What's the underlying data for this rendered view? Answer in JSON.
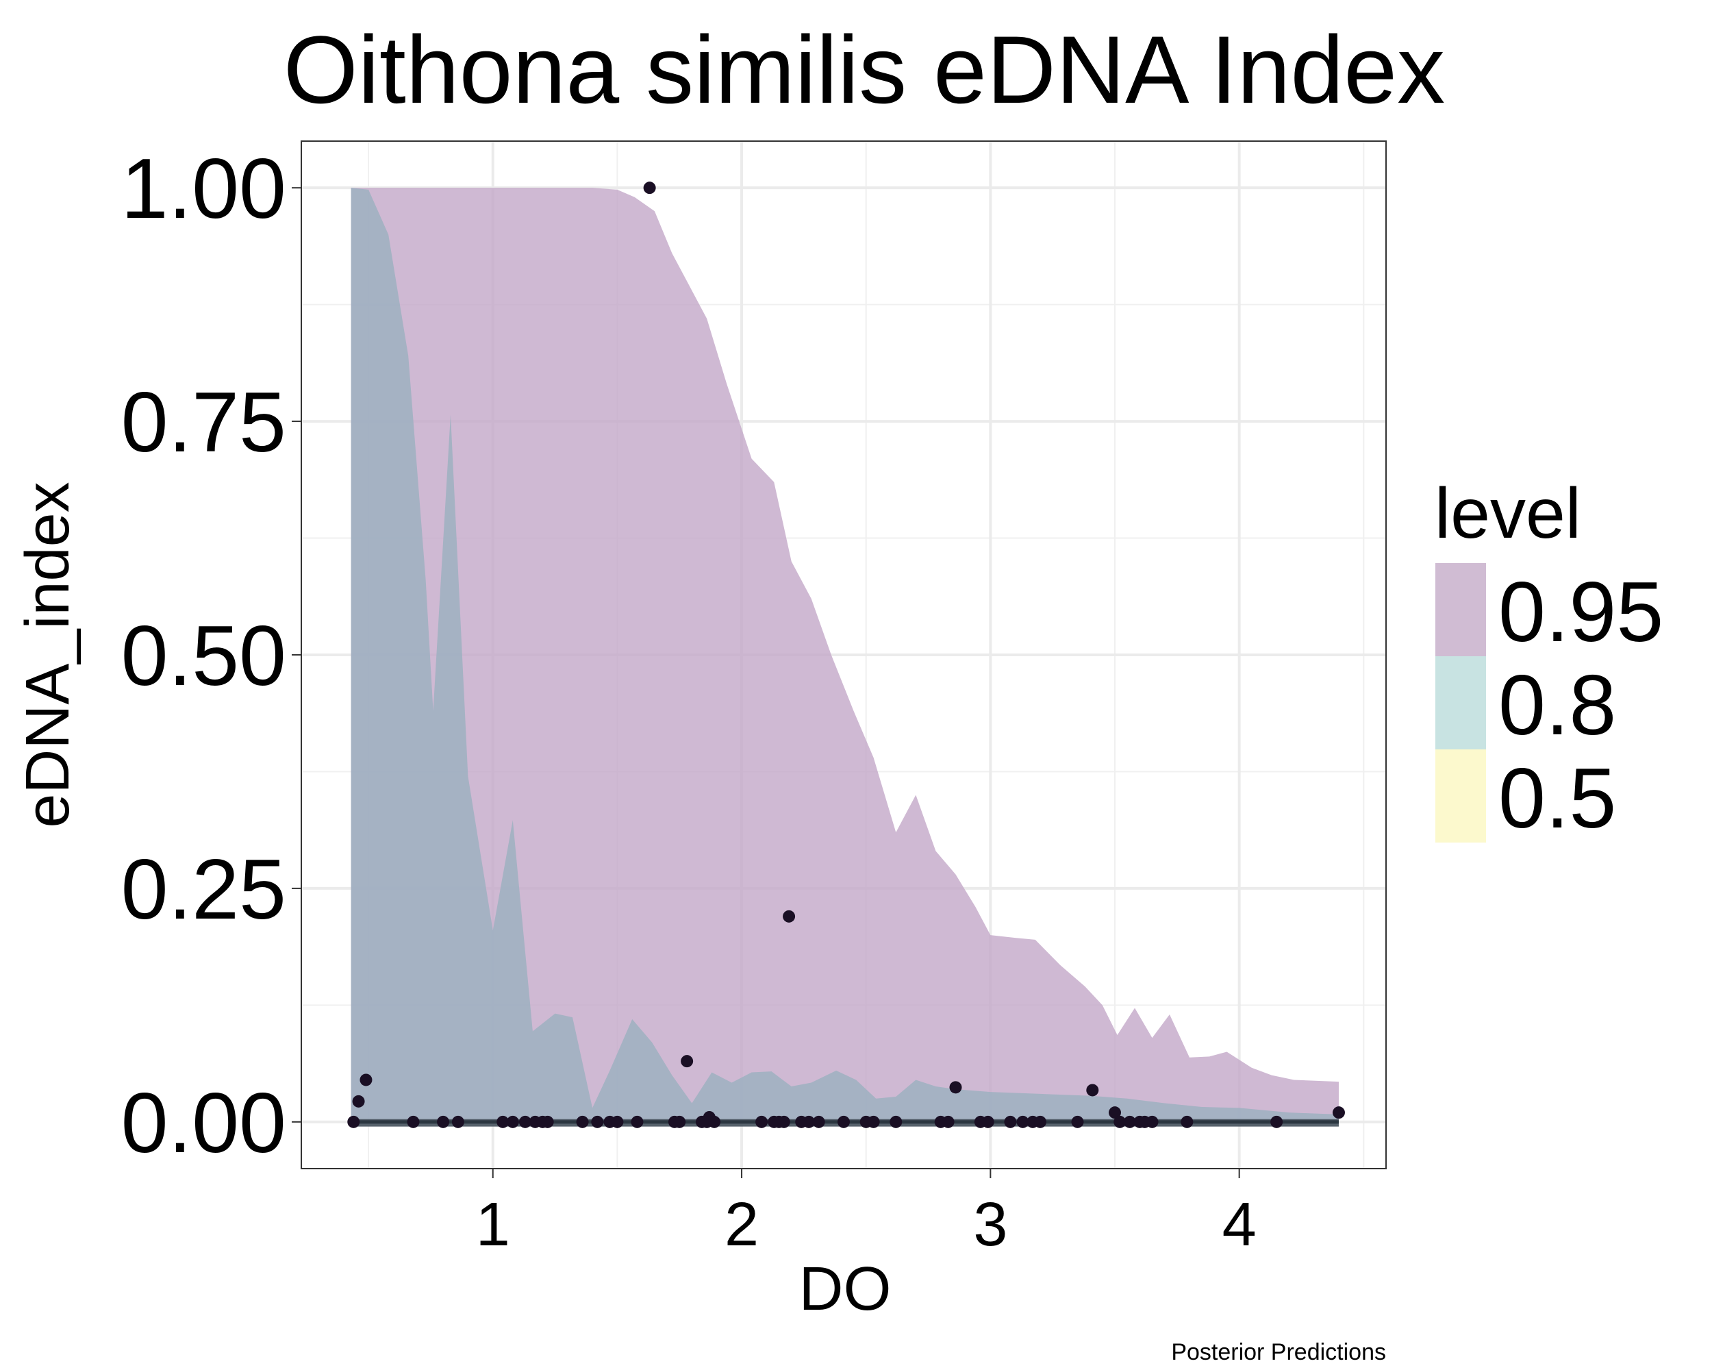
{
  "chart_data": {
    "type": "area",
    "title": "Oithona similis eDNA Index",
    "xlabel": "DO",
    "ylabel": "eDNA_index",
    "caption": "Posterior Predictions",
    "xlim": [
      0.23,
      4.59
    ],
    "ylim": [
      -0.05,
      1.05
    ],
    "x_ticks": [
      1,
      2,
      3,
      4
    ],
    "y_ticks": [
      0.0,
      0.25,
      0.5,
      0.75,
      1.0
    ],
    "y_tick_labels": [
      "0.00",
      "0.25",
      "0.50",
      "0.75",
      "1.00"
    ],
    "grid": true,
    "legend": {
      "title": "level",
      "position": "right",
      "entries": [
        {
          "label": "0.95",
          "color": "#d0bcd3"
        },
        {
          "label": "0.8",
          "color": "#c8e3e2"
        },
        {
          "label": "0.5",
          "color": "#fcf9cd"
        }
      ]
    },
    "bands": [
      {
        "level": "0.95",
        "color": "#c2a5c6",
        "upper": [
          [
            0.43,
            1.0
          ],
          [
            0.5,
            1.0
          ],
          [
            0.6,
            1.0
          ],
          [
            0.7,
            1.0
          ],
          [
            0.8,
            1.0
          ],
          [
            0.9,
            1.0
          ],
          [
            1.0,
            1.0
          ],
          [
            1.1,
            1.0
          ],
          [
            1.2,
            1.0
          ],
          [
            1.3,
            1.0
          ],
          [
            1.4,
            1.0
          ],
          [
            1.5,
            0.998
          ],
          [
            1.57,
            0.99
          ],
          [
            1.65,
            0.975
          ],
          [
            1.72,
            0.93
          ],
          [
            1.78,
            0.9
          ],
          [
            1.86,
            0.86
          ],
          [
            1.94,
            0.79
          ],
          [
            2.04,
            0.71
          ],
          [
            2.13,
            0.685
          ],
          [
            2.2,
            0.6
          ],
          [
            2.28,
            0.56
          ],
          [
            2.36,
            0.5
          ],
          [
            2.45,
            0.44
          ],
          [
            2.53,
            0.39
          ],
          [
            2.62,
            0.31
          ],
          [
            2.7,
            0.35
          ],
          [
            2.78,
            0.29
          ],
          [
            2.86,
            0.265
          ],
          [
            2.94,
            0.23
          ],
          [
            3.0,
            0.2
          ],
          [
            3.1,
            0.197
          ],
          [
            3.18,
            0.195
          ],
          [
            3.28,
            0.168
          ],
          [
            3.38,
            0.145
          ],
          [
            3.45,
            0.125
          ],
          [
            3.51,
            0.093
          ],
          [
            3.58,
            0.122
          ],
          [
            3.65,
            0.09
          ],
          [
            3.72,
            0.115
          ],
          [
            3.8,
            0.069
          ],
          [
            3.88,
            0.07
          ],
          [
            3.95,
            0.075
          ],
          [
            4.05,
            0.058
          ],
          [
            4.13,
            0.05
          ],
          [
            4.22,
            0.045
          ],
          [
            4.4,
            0.043
          ]
        ],
        "lower": [
          [
            0.43,
            0.0
          ],
          [
            4.4,
            0.0
          ]
        ]
      },
      {
        "level": "0.8",
        "color": "#98b0bf",
        "upper": [
          [
            0.43,
            1.0
          ],
          [
            0.5,
            0.998
          ],
          [
            0.58,
            0.95
          ],
          [
            0.66,
            0.82
          ],
          [
            0.73,
            0.58
          ],
          [
            0.76,
            0.44
          ],
          [
            0.83,
            0.757
          ],
          [
            0.9,
            0.37
          ],
          [
            1.0,
            0.205
          ],
          [
            1.08,
            0.323
          ],
          [
            1.16,
            0.097
          ],
          [
            1.25,
            0.116
          ],
          [
            1.32,
            0.112
          ],
          [
            1.4,
            0.015
          ],
          [
            1.47,
            0.055
          ],
          [
            1.56,
            0.11
          ],
          [
            1.64,
            0.085
          ],
          [
            1.72,
            0.05
          ],
          [
            1.8,
            0.02
          ],
          [
            1.88,
            0.053
          ],
          [
            1.96,
            0.042
          ],
          [
            2.04,
            0.053
          ],
          [
            2.12,
            0.054
          ],
          [
            2.2,
            0.038
          ],
          [
            2.28,
            0.042
          ],
          [
            2.38,
            0.055
          ],
          [
            2.46,
            0.045
          ],
          [
            2.54,
            0.025
          ],
          [
            2.62,
            0.027
          ],
          [
            2.7,
            0.045
          ],
          [
            2.78,
            0.038
          ],
          [
            2.86,
            0.035
          ],
          [
            3.0,
            0.032
          ],
          [
            3.2,
            0.03
          ],
          [
            3.4,
            0.028
          ],
          [
            3.55,
            0.025
          ],
          [
            3.7,
            0.02
          ],
          [
            3.85,
            0.016
          ],
          [
            4.0,
            0.015
          ],
          [
            4.2,
            0.01
          ],
          [
            4.4,
            0.008
          ]
        ],
        "lower": [
          [
            0.43,
            0.0
          ],
          [
            4.4,
            0.0
          ]
        ]
      },
      {
        "level": "0.5",
        "color": "#4e5a64",
        "upper": [
          [
            0.43,
            0.003
          ],
          [
            4.4,
            0.003
          ]
        ],
        "lower": [
          [
            0.43,
            -0.005
          ],
          [
            4.4,
            -0.005
          ]
        ]
      }
    ],
    "median_line": [
      [
        0.43,
        0.0
      ],
      [
        4.4,
        0.0
      ]
    ],
    "points": [
      [
        1.63,
        1.0
      ],
      [
        2.19,
        0.22
      ],
      [
        1.78,
        0.065
      ],
      [
        2.86,
        0.037
      ],
      [
        3.41,
        0.034
      ],
      [
        0.49,
        0.045
      ],
      [
        0.46,
        0.022
      ],
      [
        3.5,
        0.01
      ],
      [
        4.4,
        0.01
      ],
      [
        1.87,
        0.005
      ],
      [
        0.44,
        0.0
      ],
      [
        0.68,
        0.0
      ],
      [
        0.8,
        0.0
      ],
      [
        0.86,
        0.0
      ],
      [
        1.04,
        0.0
      ],
      [
        1.08,
        0.0
      ],
      [
        1.13,
        0.0
      ],
      [
        1.17,
        0.0
      ],
      [
        1.2,
        0.0
      ],
      [
        1.22,
        0.0
      ],
      [
        1.36,
        0.0
      ],
      [
        1.42,
        0.0
      ],
      [
        1.47,
        0.0
      ],
      [
        1.5,
        0.0
      ],
      [
        1.58,
        0.0
      ],
      [
        1.73,
        0.0
      ],
      [
        1.75,
        0.0
      ],
      [
        1.84,
        0.0
      ],
      [
        1.86,
        0.0
      ],
      [
        1.89,
        0.0
      ],
      [
        2.08,
        0.0
      ],
      [
        2.13,
        0.0
      ],
      [
        2.15,
        0.0
      ],
      [
        2.17,
        0.0
      ],
      [
        2.24,
        0.0
      ],
      [
        2.27,
        0.0
      ],
      [
        2.31,
        0.0
      ],
      [
        2.41,
        0.0
      ],
      [
        2.5,
        0.0
      ],
      [
        2.53,
        0.0
      ],
      [
        2.62,
        0.0
      ],
      [
        2.8,
        0.0
      ],
      [
        2.83,
        0.0
      ],
      [
        2.96,
        0.0
      ],
      [
        2.99,
        0.0
      ],
      [
        3.08,
        0.0
      ],
      [
        3.13,
        0.0
      ],
      [
        3.17,
        0.0
      ],
      [
        3.2,
        0.0
      ],
      [
        3.35,
        0.0
      ],
      [
        3.52,
        0.0
      ],
      [
        3.56,
        0.0
      ],
      [
        3.6,
        0.0
      ],
      [
        3.62,
        0.0
      ],
      [
        3.65,
        0.0
      ],
      [
        3.79,
        0.0
      ],
      [
        4.15,
        0.0
      ]
    ],
    "point_color": "#1a0f24"
  }
}
